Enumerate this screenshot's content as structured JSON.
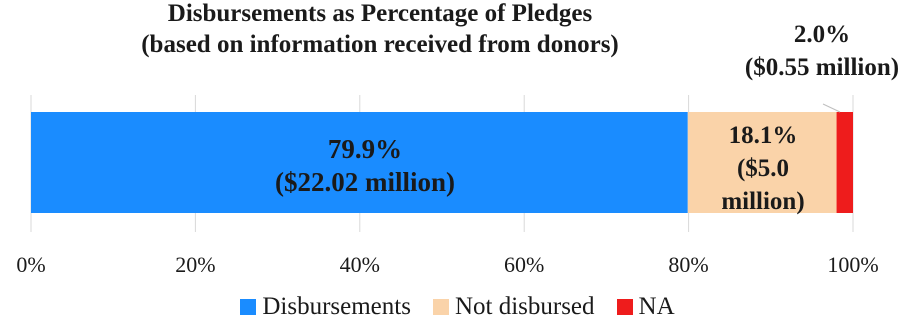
{
  "chart_data": {
    "type": "bar",
    "orientation": "horizontal-stacked",
    "title": "Disbursements as Percentage of Pledges",
    "subtitle": "(based on information received from donors)",
    "xlabel": "",
    "ylabel": "",
    "xlim": [
      0,
      100
    ],
    "x_ticks": [
      "0%",
      "20%",
      "40%",
      "60%",
      "80%",
      "100%"
    ],
    "grid": true,
    "legend_position": "bottom",
    "series": [
      {
        "name": "Disbursements",
        "value": 79.9,
        "color": "#1a8cff",
        "label_lines": [
          "79.9%",
          "($22.02 million)"
        ]
      },
      {
        "name": "Not disbursed",
        "value": 18.1,
        "color": "#fad3a9",
        "label_lines": [
          "18.1%",
          "($5.0",
          "million)"
        ]
      },
      {
        "name": "NA",
        "value": 2.0,
        "color": "#ee1c1c",
        "label_lines": [
          "2.0%",
          "($0.55 million)"
        ]
      }
    ]
  }
}
